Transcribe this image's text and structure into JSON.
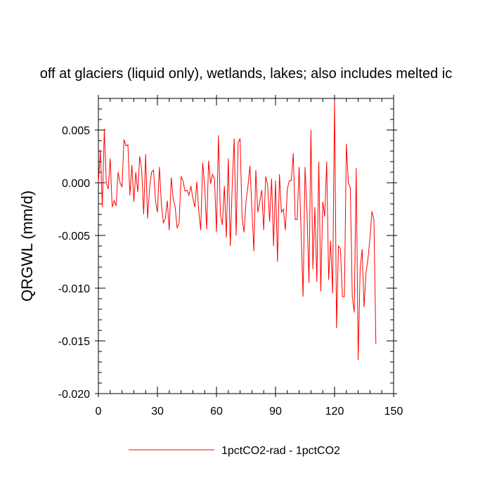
{
  "chart_data": {
    "type": "line",
    "title": "off at glaciers (liquid only), wetlands, lakes; also includes melted ic",
    "xlabel": "",
    "ylabel": "QRGWL  (mm/d)",
    "xlim": [
      0,
      150
    ],
    "ylim": [
      -0.02,
      0.008
    ],
    "x_ticks": [
      0,
      30,
      60,
      90,
      120,
      150
    ],
    "x_tick_labels": [
      "0",
      "30",
      "60",
      "90",
      "120",
      "150"
    ],
    "y_ticks": [
      -0.02,
      -0.015,
      -0.01,
      -0.005,
      0.0,
      0.005
    ],
    "y_tick_labels": [
      "-0.020",
      "-0.015",
      "-0.010",
      "-0.005",
      "0.000",
      "0.005"
    ],
    "grid": false,
    "legend_position": "bottom",
    "series": [
      {
        "name": "1pctCO2-rad - 1pctCO2",
        "color": "#ff0000",
        "x_start": 0,
        "x_step": 1,
        "values": [
          0.0,
          0.0031,
          -0.0023,
          0.0051,
          0.0,
          -0.0006,
          0.0023,
          -0.0023,
          -0.0017,
          -0.0022,
          0.001,
          0.0,
          -0.0004,
          0.0041,
          0.0035,
          0.0036,
          -0.0012,
          0.0017,
          -0.0018,
          0.001,
          -0.0009,
          0.0025,
          0.0012,
          -0.003,
          0.0027,
          -0.0034,
          -0.0005,
          0.001,
          0.0012,
          -0.0017,
          -0.0028,
          0.0015,
          -0.002,
          -0.0038,
          -0.0034,
          -0.0017,
          -0.0045,
          0.0005,
          -0.0015,
          -0.0023,
          -0.0043,
          -0.0038,
          0.0006,
          0.0002,
          -0.0008,
          -0.0007,
          -0.0012,
          -0.0003,
          -0.0015,
          -0.0023,
          0.0001,
          -0.0027,
          -0.0045,
          0.0019,
          -0.0003,
          -0.0044,
          0.0021,
          -0.0001,
          0.0008,
          0.0003,
          -0.0047,
          0.0045,
          -0.003,
          -0.004,
          -0.0003,
          -0.0052,
          0.0023,
          -0.006,
          -0.0003,
          0.0042,
          -0.005,
          0.0038,
          0.0042,
          -0.0033,
          -0.0047,
          -0.0018,
          -0.0003,
          0.0016,
          -0.0025,
          -0.0065,
          0.0012,
          -0.0028,
          -0.0018,
          -0.0007,
          -0.0045,
          0.0006,
          -0.0002,
          -0.0037,
          0.0004,
          -0.006,
          0.0002,
          -0.0075,
          0.0008,
          -0.0028,
          -0.0025,
          -0.0045,
          -0.0006,
          0.0002,
          0.0002,
          0.0028,
          -0.0035,
          -0.0035,
          0.0015,
          -0.0048,
          -0.0108,
          0.0015,
          -0.0028,
          -0.0095,
          0.005,
          -0.0082,
          -0.0023,
          -0.0094,
          0.002,
          -0.0103,
          -0.0018,
          -0.0032,
          0.002,
          -0.0092,
          -0.0055,
          -0.0105,
          0.0078,
          -0.0138,
          -0.006,
          -0.0063,
          -0.0108,
          -0.0108,
          0.0037,
          0.0,
          -0.0005,
          -0.0108,
          -0.0123,
          0.0014,
          -0.0168,
          -0.0082,
          -0.0063,
          -0.0118,
          -0.0085,
          -0.0072,
          -0.0052,
          -0.0027,
          -0.0035,
          -0.0153
        ]
      }
    ]
  }
}
